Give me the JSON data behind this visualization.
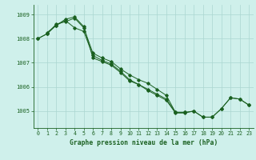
{
  "title": "Graphe pression niveau de la mer (hPa)",
  "bg_color": "#cff0eb",
  "grid_color": "#aad6d0",
  "line_color": "#1a6020",
  "xlim": [
    -0.5,
    23.5
  ],
  "ylim": [
    1004.3,
    1009.4
  ],
  "yticks": [
    1005,
    1006,
    1007,
    1008,
    1009
  ],
  "xticks": [
    0,
    1,
    2,
    3,
    4,
    5,
    6,
    7,
    8,
    9,
    10,
    11,
    12,
    13,
    14,
    15,
    16,
    17,
    18,
    19,
    20,
    21,
    22,
    23
  ],
  "series1_x": [
    0,
    1,
    2,
    3,
    4,
    5,
    6,
    7,
    8,
    9,
    10,
    11,
    12,
    13,
    14,
    15,
    16,
    17,
    18,
    19,
    20,
    21,
    22,
    23
  ],
  "series1_y": [
    1008.0,
    1008.2,
    1008.6,
    1008.7,
    1008.85,
    1008.45,
    1007.4,
    1007.2,
    1007.05,
    1006.75,
    1006.5,
    1006.3,
    1006.15,
    1005.9,
    1005.65,
    1004.95,
    1004.95,
    1005.0,
    1004.75,
    1004.75,
    1005.1,
    1005.55,
    1005.5,
    1005.25
  ],
  "series2_x": [
    0,
    1,
    2,
    3,
    4,
    5,
    6,
    7,
    8,
    9,
    10,
    11,
    12,
    13,
    14,
    15,
    16,
    17,
    18,
    19,
    20,
    21,
    22,
    23
  ],
  "series2_y": [
    1008.0,
    1008.2,
    1008.55,
    1008.8,
    1008.9,
    1008.5,
    1007.2,
    1007.05,
    1006.9,
    1006.6,
    1006.25,
    1006.1,
    1005.85,
    1005.65,
    1005.45,
    1004.92,
    1004.92,
    1005.0,
    1004.75,
    1004.75,
    1005.1,
    1005.55,
    1005.5,
    1005.25
  ],
  "series3_x": [
    1,
    2,
    3,
    4,
    5,
    6,
    7,
    8,
    9,
    10,
    11,
    12,
    13,
    14,
    15,
    16
  ],
  "series3_y": [
    1008.25,
    1008.55,
    1008.75,
    1008.45,
    1008.3,
    1007.3,
    1007.1,
    1006.95,
    1006.65,
    1006.3,
    1006.1,
    1005.9,
    1005.7,
    1005.5,
    1004.95,
    1004.95
  ]
}
